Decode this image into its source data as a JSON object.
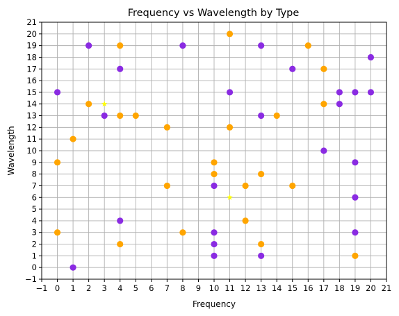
{
  "chart_data": {
    "type": "scatter",
    "title": "Frequency vs Wavelength by Type",
    "xlabel": "Frequency",
    "ylabel": "Wavelength",
    "xlim": [
      -1,
      21
    ],
    "ylim": [
      -1,
      21
    ],
    "xticks": [
      -1,
      0,
      1,
      2,
      3,
      4,
      5,
      6,
      7,
      8,
      9,
      10,
      11,
      12,
      13,
      14,
      15,
      16,
      17,
      18,
      19,
      20,
      21
    ],
    "yticks": [
      -1,
      0,
      1,
      2,
      3,
      4,
      5,
      6,
      7,
      8,
      9,
      10,
      11,
      12,
      13,
      14,
      15,
      16,
      17,
      18,
      19,
      20,
      21
    ],
    "grid": true,
    "series": [
      {
        "color": "#8a2be2",
        "marker": "circle",
        "points": [
          [
            0,
            15
          ],
          [
            1,
            0
          ],
          [
            2,
            19
          ],
          [
            3,
            13
          ],
          [
            4,
            17
          ],
          [
            4,
            4
          ],
          [
            8,
            19
          ],
          [
            10,
            7
          ],
          [
            10,
            3
          ],
          [
            10,
            2
          ],
          [
            10,
            1
          ],
          [
            11,
            15
          ],
          [
            13,
            19
          ],
          [
            13,
            13
          ],
          [
            13,
            1
          ],
          [
            15,
            17
          ],
          [
            17,
            10
          ],
          [
            18,
            15
          ],
          [
            18,
            14
          ],
          [
            19,
            15
          ],
          [
            19,
            9
          ],
          [
            19,
            6
          ],
          [
            19,
            3
          ],
          [
            20,
            18
          ],
          [
            20,
            15
          ]
        ]
      },
      {
        "color": "#ffa500",
        "marker": "circle",
        "points": [
          [
            0,
            9
          ],
          [
            0,
            3
          ],
          [
            1,
            11
          ],
          [
            2,
            14
          ],
          [
            4,
            19
          ],
          [
            4,
            13
          ],
          [
            4,
            2
          ],
          [
            5,
            13
          ],
          [
            7,
            12
          ],
          [
            7,
            7
          ],
          [
            8,
            3
          ],
          [
            10,
            9
          ],
          [
            10,
            8
          ],
          [
            11,
            20
          ],
          [
            11,
            12
          ],
          [
            12,
            7
          ],
          [
            12,
            4
          ],
          [
            13,
            8
          ],
          [
            13,
            2
          ],
          [
            14,
            13
          ],
          [
            15,
            7
          ],
          [
            16,
            19
          ],
          [
            17,
            17
          ],
          [
            17,
            14
          ],
          [
            19,
            1
          ]
        ]
      },
      {
        "color": "#ffff00",
        "marker": "star",
        "points": [
          [
            3,
            14
          ],
          [
            11,
            6
          ]
        ]
      }
    ]
  }
}
